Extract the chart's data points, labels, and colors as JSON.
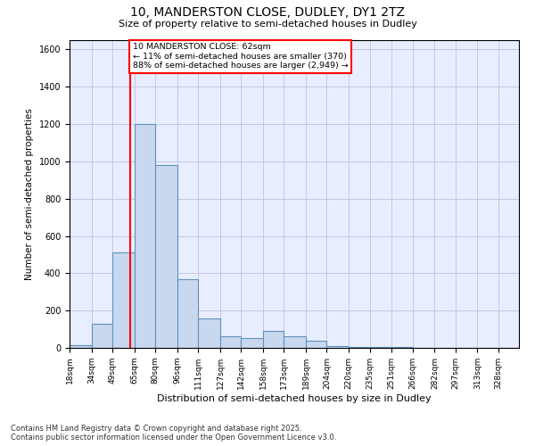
{
  "title_line1": "10, MANDERSTON CLOSE, DUDLEY, DY1 2TZ",
  "title_line2": "Size of property relative to semi-detached houses in Dudley",
  "xlabel": "Distribution of semi-detached houses by size in Dudley",
  "ylabel": "Number of semi-detached properties",
  "footnote_line1": "Contains HM Land Registry data © Crown copyright and database right 2025.",
  "footnote_line2": "Contains public sector information licensed under the Open Government Licence v3.0.",
  "annotation_line1": "10 MANDERSTON CLOSE: 62sqm",
  "annotation_line2": "← 11% of semi-detached houses are smaller (370)",
  "annotation_line3": "88% of semi-detached houses are larger (2,949) →",
  "property_size": 62,
  "bar_color": "#c8d8ee",
  "bar_edge_color": "#6090c0",
  "vline_color": "red",
  "background_color": "#e8eeff",
  "grid_color": "#c0c8e8",
  "annotation_box_color": "white",
  "annotation_box_edge": "red",
  "ylim": [
    0,
    1650
  ],
  "yticks": [
    0,
    200,
    400,
    600,
    800,
    1000,
    1200,
    1400,
    1600
  ],
  "categories": [
    "18sqm",
    "34sqm",
    "49sqm",
    "65sqm",
    "80sqm",
    "96sqm",
    "111sqm",
    "127sqm",
    "142sqm",
    "158sqm",
    "173sqm",
    "189sqm",
    "204sqm",
    "220sqm",
    "235sqm",
    "251sqm",
    "266sqm",
    "282sqm",
    "297sqm",
    "313sqm",
    "328sqm"
  ],
  "bin_edges": [
    18,
    34,
    49,
    65,
    80,
    96,
    111,
    127,
    142,
    158,
    173,
    189,
    204,
    220,
    235,
    251,
    266,
    282,
    297,
    313,
    328,
    343
  ],
  "values": [
    15,
    130,
    510,
    1200,
    980,
    370,
    160,
    60,
    55,
    90,
    60,
    40,
    10,
    5,
    5,
    3,
    2,
    2,
    1,
    1,
    1
  ]
}
